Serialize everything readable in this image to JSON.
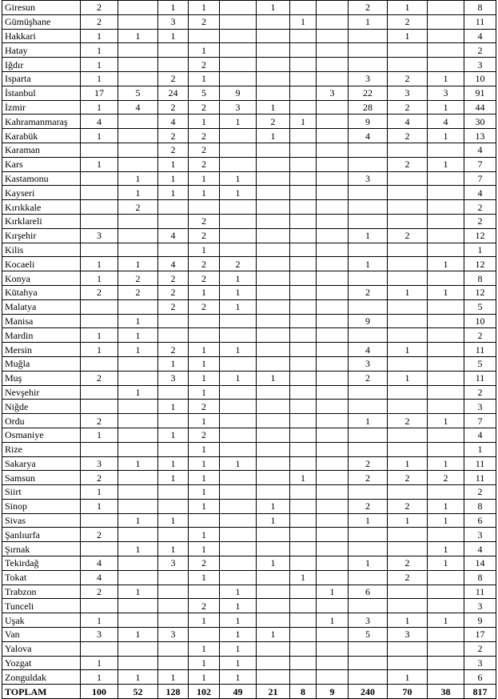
{
  "table": {
    "rows": [
      [
        "Giresun",
        2,
        null,
        1,
        1,
        null,
        1,
        null,
        null,
        2,
        1,
        null,
        8
      ],
      [
        "Gümüşhane",
        2,
        null,
        3,
        2,
        null,
        null,
        1,
        null,
        1,
        2,
        null,
        11
      ],
      [
        "Hakkari",
        1,
        1,
        1,
        null,
        null,
        null,
        null,
        null,
        null,
        1,
        null,
        4
      ],
      [
        "Hatay",
        1,
        null,
        null,
        1,
        null,
        null,
        null,
        null,
        null,
        null,
        null,
        2
      ],
      [
        "Iğdır",
        1,
        null,
        null,
        2,
        null,
        null,
        null,
        null,
        null,
        null,
        null,
        3
      ],
      [
        "Isparta",
        1,
        null,
        2,
        1,
        null,
        null,
        null,
        null,
        3,
        2,
        1,
        10
      ],
      [
        "İstanbul",
        17,
        5,
        24,
        5,
        9,
        null,
        null,
        3,
        22,
        3,
        3,
        91
      ],
      [
        "İzmir",
        1,
        4,
        2,
        2,
        3,
        1,
        null,
        null,
        28,
        2,
        1,
        44
      ],
      [
        "Kahramanmaraş",
        4,
        null,
        4,
        1,
        1,
        2,
        1,
        null,
        9,
        4,
        4,
        30
      ],
      [
        "Karabük",
        1,
        null,
        2,
        2,
        null,
        1,
        null,
        null,
        4,
        2,
        1,
        13
      ],
      [
        "Karaman",
        null,
        null,
        2,
        2,
        null,
        null,
        null,
        null,
        null,
        null,
        null,
        4
      ],
      [
        "Kars",
        1,
        null,
        1,
        2,
        null,
        null,
        null,
        null,
        null,
        2,
        1,
        7
      ],
      [
        "Kastamonu",
        null,
        1,
        1,
        1,
        1,
        null,
        null,
        null,
        3,
        null,
        null,
        7
      ],
      [
        "Kayseri",
        null,
        1,
        1,
        1,
        1,
        null,
        null,
        null,
        null,
        null,
        null,
        4
      ],
      [
        "Kırıkkale",
        null,
        2,
        null,
        null,
        null,
        null,
        null,
        null,
        null,
        null,
        null,
        2
      ],
      [
        "Kırklareli",
        null,
        null,
        null,
        2,
        null,
        null,
        null,
        null,
        null,
        null,
        null,
        2
      ],
      [
        "Kırşehir",
        3,
        null,
        4,
        2,
        null,
        null,
        null,
        null,
        1,
        2,
        null,
        12
      ],
      [
        "Kilis",
        null,
        null,
        null,
        1,
        null,
        null,
        null,
        null,
        null,
        null,
        null,
        1
      ],
      [
        "Kocaeli",
        1,
        1,
        4,
        2,
        2,
        null,
        null,
        null,
        1,
        null,
        1,
        12
      ],
      [
        "Konya",
        1,
        2,
        2,
        2,
        1,
        null,
        null,
        null,
        null,
        null,
        null,
        8
      ],
      [
        "Kütahya",
        2,
        2,
        2,
        1,
        1,
        null,
        null,
        null,
        2,
        1,
        1,
        12
      ],
      [
        "Malatya",
        null,
        null,
        2,
        2,
        1,
        null,
        null,
        null,
        null,
        null,
        null,
        5
      ],
      [
        "Manisa",
        null,
        1,
        null,
        null,
        null,
        null,
        null,
        null,
        9,
        null,
        null,
        10
      ],
      [
        "Mardin",
        1,
        1,
        null,
        null,
        null,
        null,
        null,
        null,
        null,
        null,
        null,
        2
      ],
      [
        "Mersin",
        1,
        1,
        2,
        1,
        1,
        null,
        null,
        null,
        4,
        1,
        null,
        11
      ],
      [
        "Muğla",
        null,
        null,
        1,
        1,
        null,
        null,
        null,
        null,
        3,
        null,
        null,
        5
      ],
      [
        "Muş",
        2,
        null,
        3,
        1,
        1,
        1,
        null,
        null,
        2,
        1,
        null,
        11
      ],
      [
        "Nevşehir",
        null,
        1,
        null,
        1,
        null,
        null,
        null,
        null,
        null,
        null,
        null,
        2
      ],
      [
        "Niğde",
        null,
        null,
        1,
        2,
        null,
        null,
        null,
        null,
        null,
        null,
        null,
        3
      ],
      [
        "Ordu",
        2,
        null,
        null,
        1,
        null,
        null,
        null,
        null,
        1,
        2,
        1,
        7
      ],
      [
        "Osmaniye",
        1,
        null,
        1,
        2,
        null,
        null,
        null,
        null,
        null,
        null,
        null,
        4
      ],
      [
        "Rize",
        null,
        null,
        null,
        1,
        null,
        null,
        null,
        null,
        null,
        null,
        null,
        1
      ],
      [
        "Sakarya",
        3,
        1,
        1,
        1,
        1,
        null,
        null,
        null,
        2,
        1,
        1,
        11
      ],
      [
        "Samsun",
        2,
        null,
        1,
        1,
        null,
        null,
        1,
        null,
        2,
        2,
        2,
        11
      ],
      [
        "Siirt",
        1,
        null,
        null,
        1,
        null,
        null,
        null,
        null,
        null,
        null,
        null,
        2
      ],
      [
        "Sinop",
        1,
        null,
        null,
        1,
        null,
        1,
        null,
        null,
        2,
        2,
        1,
        8
      ],
      [
        "Sivas",
        null,
        1,
        1,
        null,
        null,
        1,
        null,
        null,
        1,
        1,
        1,
        6
      ],
      [
        "Şanlıurfa",
        2,
        null,
        null,
        1,
        null,
        null,
        null,
        null,
        null,
        null,
        null,
        3
      ],
      [
        "Şırnak",
        null,
        1,
        1,
        1,
        null,
        null,
        null,
        null,
        null,
        null,
        1,
        4
      ],
      [
        "Tekirdağ",
        4,
        null,
        3,
        2,
        null,
        1,
        null,
        null,
        1,
        2,
        1,
        14
      ],
      [
        "Tokat",
        4,
        null,
        null,
        1,
        null,
        null,
        1,
        null,
        null,
        2,
        null,
        8
      ],
      [
        "Trabzon",
        2,
        1,
        null,
        null,
        1,
        null,
        null,
        1,
        6,
        null,
        null,
        11
      ],
      [
        "Tunceli",
        null,
        null,
        null,
        2,
        1,
        null,
        null,
        null,
        null,
        null,
        null,
        3
      ],
      [
        "Uşak",
        1,
        null,
        null,
        1,
        1,
        null,
        null,
        1,
        3,
        1,
        1,
        9
      ],
      [
        "Van",
        3,
        1,
        3,
        null,
        1,
        1,
        null,
        null,
        5,
        3,
        null,
        17
      ],
      [
        "Yalova",
        null,
        null,
        null,
        1,
        1,
        null,
        null,
        null,
        null,
        null,
        null,
        2
      ],
      [
        "Yozgat",
        1,
        null,
        null,
        1,
        1,
        null,
        null,
        null,
        null,
        null,
        null,
        3
      ],
      [
        "Zonguldak",
        1,
        1,
        1,
        1,
        1,
        null,
        null,
        null,
        null,
        1,
        null,
        6
      ],
      [
        "TOPLAM",
        100,
        52,
        128,
        102,
        49,
        21,
        8,
        9,
        240,
        70,
        38,
        817
      ]
    ]
  }
}
